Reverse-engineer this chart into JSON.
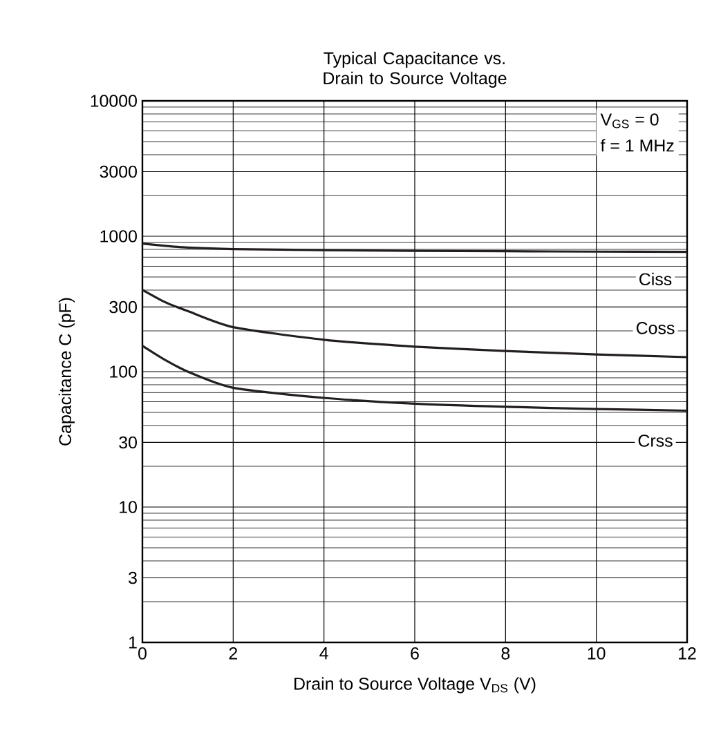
{
  "chart_data": {
    "type": "line",
    "title": "Typical Capacitance vs. Drain to Source Voltage",
    "xlabel": "Drain to Source Voltage   V$_{DS}$  (V)",
    "ylabel": "Capacitance   C  (pF)",
    "annotations": [
      "V$_{GS}$ = 0",
      "f = 1 MHz"
    ],
    "x": [
      0,
      0.5,
      1,
      2,
      4,
      6,
      8,
      10,
      12
    ],
    "series": [
      {
        "name": "Ciss",
        "color": "#231f20",
        "values": [
          883,
          850,
          825,
          804,
          790,
          780,
          775,
          770,
          767
        ]
      },
      {
        "name": "Coss",
        "color": "#231f20",
        "values": [
          402,
          326,
          280,
          213,
          172,
          153,
          142,
          134,
          128
        ]
      },
      {
        "name": "Crss",
        "color": "#231f20",
        "values": [
          155,
          122,
          100,
          76,
          64,
          58,
          55,
          53,
          51.5
        ]
      }
    ],
    "log": "y",
    "grid": true,
    "marker": "none",
    "line_style": "solid",
    "xlim": [
      0,
      12
    ],
    "ylim": [
      1,
      10000
    ],
    "xticks": [
      0,
      2,
      4,
      6,
      8,
      10,
      12
    ],
    "yticks": [
      1,
      3,
      10,
      30,
      100,
      300,
      1000,
      3000,
      10000
    ]
  }
}
